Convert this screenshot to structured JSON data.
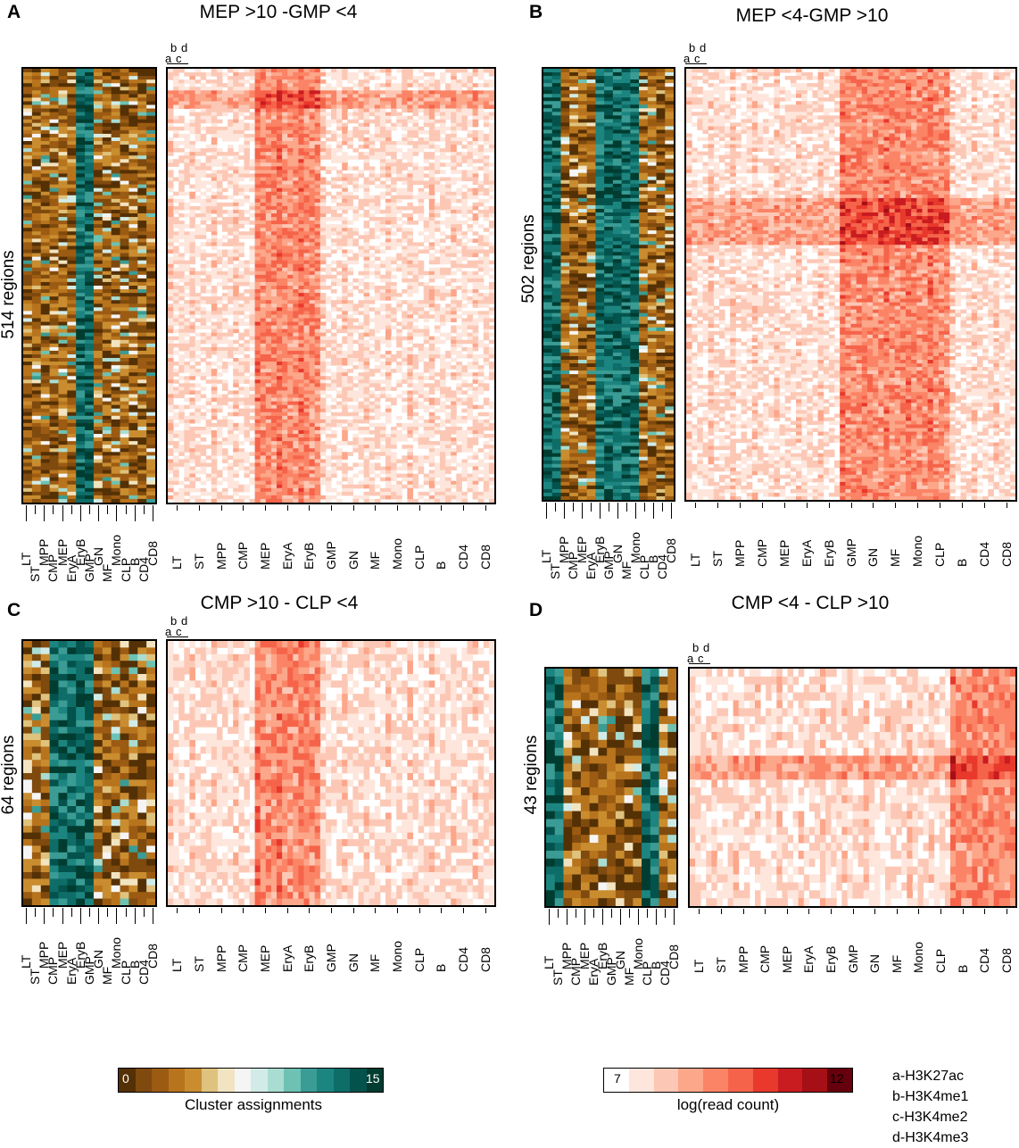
{
  "panels": [
    {
      "label": "A",
      "title": "MEP >10 -GMP <4",
      "regions": "514 regions",
      "seed": 11,
      "rows": 120,
      "hotcols": [
        4,
        5,
        6
      ],
      "hotband": [
        0.05,
        0.09
      ]
    },
    {
      "label": "B",
      "title": "MEP <4-GMP >10",
      "regions": "502 regions",
      "seed": 23,
      "rows": 120,
      "hotcols": [
        7,
        8,
        9,
        10,
        11
      ],
      "hotband": [
        0.3,
        0.4
      ]
    },
    {
      "label": "C",
      "title": "CMP >10 - CLP <4",
      "regions": "64 regions",
      "seed": 37,
      "rows": 40,
      "hotcols": [
        4,
        5,
        6
      ],
      "hotband": [
        0.0,
        0.0
      ]
    },
    {
      "label": "D",
      "title": "CMP <4 - CLP >10",
      "regions": "43 regions",
      "seed": 53,
      "rows": 30,
      "hotcols": [
        12,
        13,
        14
      ],
      "hotband": [
        0.35,
        0.45
      ]
    }
  ],
  "column_marks": [
    "a",
    "b",
    "c",
    "d"
  ],
  "cell_types_cluster": [
    "LT",
    "ST",
    "MPP",
    "CMP",
    "MEP",
    "EryA",
    "EryB",
    "GMP",
    "GN",
    "MF",
    "Mono",
    "CLP",
    "B",
    "CD4",
    "CD8"
  ],
  "cell_types_signal": [
    "LT",
    "ST",
    "MPP",
    "CMP",
    "MEP",
    "EryA",
    "EryB",
    "GMP",
    "GN",
    "MF",
    "Mono",
    "CLP",
    "B",
    "CD4",
    "CD8"
  ],
  "colorbars": {
    "cluster": {
      "title": "Cluster assignments",
      "min_label": "0",
      "max_label": "15",
      "colors": [
        "#543005",
        "#7f4a0e",
        "#9c5b12",
        "#b8741d",
        "#c98d30",
        "#dfc27d",
        "#f2e4c0",
        "#f5f5f5",
        "#d1ece8",
        "#a9ddd2",
        "#6dc2b3",
        "#3a9c94",
        "#1d8580",
        "#0f6d68",
        "#04524c",
        "#003c30"
      ]
    },
    "signal": {
      "title": "log(read count)",
      "min_label": "7",
      "max_label": "12",
      "colors": [
        "#ffffff",
        "#fee6dc",
        "#fcc8b5",
        "#fca68a",
        "#fb8466",
        "#f5644a",
        "#e8392c",
        "#c91c20",
        "#a50f15",
        "#67000d"
      ]
    }
  },
  "mark_key": [
    "a-H3K27ac",
    "b-H3K4me1",
    "c-H3K4me2",
    "d-H3K4me3"
  ]
}
